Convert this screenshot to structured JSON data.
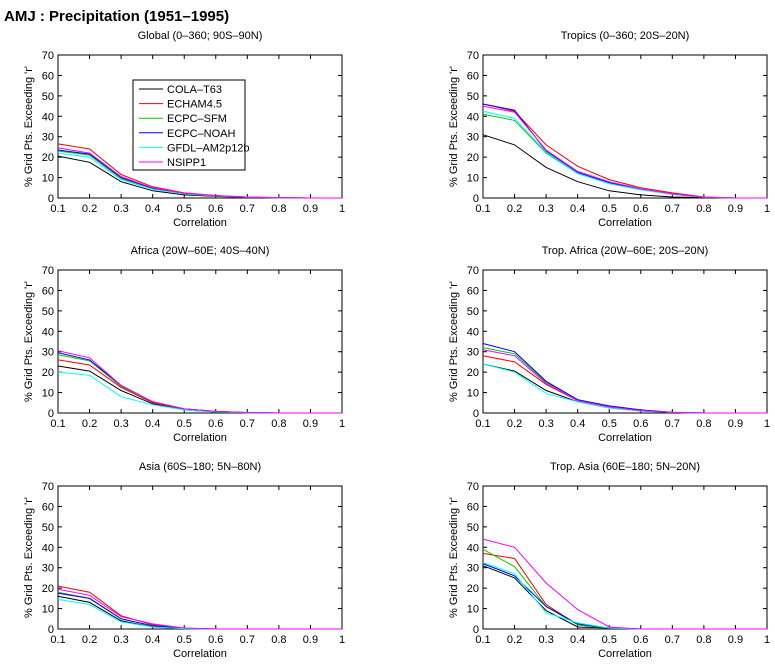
{
  "title": "AMJ : Precipitation (1951–1995)",
  "chart_data": [
    {
      "type": "line",
      "title": "Global (0–360; 90S–90N)",
      "xlabel": "Correlation",
      "ylabel": "% Grid Pts. Exceeding 'r'",
      "xlim": [
        0.1,
        1
      ],
      "ylim": [
        0,
        70
      ],
      "x": [
        0.1,
        0.2,
        0.3,
        0.4,
        0.5,
        0.6,
        0.7,
        0.8,
        0.9,
        1.0
      ],
      "series": [
        {
          "name": "COLA–T63",
          "values": [
            20.5,
            17.5,
            8,
            3.5,
            1.5,
            0.8,
            0.3,
            0.1,
            0,
            0
          ]
        },
        {
          "name": "ECHAM4.5",
          "values": [
            26.5,
            24,
            11.5,
            5.5,
            2.5,
            1.2,
            0.5,
            0.2,
            0,
            0
          ]
        },
        {
          "name": "ECPC–SFM",
          "values": [
            23,
            21,
            9.5,
            4.5,
            2,
            1,
            0.4,
            0.1,
            0,
            0
          ]
        },
        {
          "name": "ECPC–NOAH",
          "values": [
            23.5,
            21.5,
            10,
            4.8,
            2.2,
            1.1,
            0.4,
            0.1,
            0,
            0
          ]
        },
        {
          "name": "GFDL–AM2p12b",
          "values": [
            22,
            20,
            9,
            4.2,
            2,
            1,
            0.4,
            0.1,
            0,
            0
          ]
        },
        {
          "name": "NSIPP1",
          "values": [
            24.5,
            22,
            10.5,
            5,
            2.3,
            1.1,
            0.4,
            0.1,
            0,
            0
          ]
        }
      ],
      "xticks": [
        "0.1",
        "0.2",
        "0.3",
        "0.4",
        "0.5",
        "0.6",
        "0.7",
        "0.8",
        "0.9",
        "1"
      ],
      "yticks": [
        "0",
        "10",
        "20",
        "30",
        "40",
        "50",
        "60",
        "70"
      ],
      "legend": "upper-center"
    },
    {
      "type": "line",
      "title": "Tropics (0–360; 20S–20N)",
      "xlabel": "Correlation",
      "ylabel": "% Grid Pts. Exceeding 'r'",
      "xlim": [
        0.1,
        1
      ],
      "ylim": [
        0,
        70
      ],
      "x": [
        0.1,
        0.2,
        0.3,
        0.4,
        0.5,
        0.6,
        0.7,
        0.8,
        0.9,
        1.0
      ],
      "series": [
        {
          "name": "COLA–T63",
          "values": [
            31,
            26,
            15,
            8,
            3.5,
            1.5,
            0.5,
            0.2,
            0,
            0
          ]
        },
        {
          "name": "ECHAM4.5",
          "values": [
            46,
            42.5,
            26,
            15.5,
            9,
            5,
            2.5,
            0.5,
            0,
            0
          ]
        },
        {
          "name": "ECPC–SFM",
          "values": [
            41,
            38,
            22,
            12,
            7,
            4,
            1.8,
            0.4,
            0,
            0
          ]
        },
        {
          "name": "ECPC–NOAH",
          "values": [
            46,
            43,
            23,
            12.5,
            7.5,
            4.2,
            2,
            0.4,
            0,
            0
          ]
        },
        {
          "name": "GFDL–AM2p12b",
          "values": [
            42.5,
            39,
            22.5,
            12,
            7,
            4,
            1.8,
            0.4,
            0,
            0
          ]
        },
        {
          "name": "NSIPP1",
          "values": [
            45,
            42,
            23.5,
            13,
            8,
            4.5,
            2,
            0.4,
            0,
            0
          ]
        }
      ],
      "xticks": [
        "0.1",
        "0.2",
        "0.3",
        "0.4",
        "0.5",
        "0.6",
        "0.7",
        "0.8",
        "0.9",
        "1"
      ],
      "yticks": [
        "0",
        "10",
        "20",
        "30",
        "40",
        "50",
        "60",
        "70"
      ]
    },
    {
      "type": "line",
      "title": "Africa (20W–60E; 40S–40N)",
      "xlabel": "Correlation",
      "ylabel": "% Grid Pts. Exceeding 'r'",
      "xlim": [
        0.1,
        1
      ],
      "ylim": [
        0,
        70
      ],
      "x": [
        0.1,
        0.2,
        0.3,
        0.4,
        0.5,
        0.6,
        0.7,
        0.8,
        0.9,
        1.0
      ],
      "series": [
        {
          "name": "COLA–T63",
          "values": [
            23,
            20.5,
            11,
            4.5,
            1.5,
            0.5,
            0.1,
            0,
            0,
            0
          ]
        },
        {
          "name": "ECHAM4.5",
          "values": [
            26,
            23.5,
            12.5,
            5,
            2,
            0.8,
            0.2,
            0,
            0,
            0
          ]
        },
        {
          "name": "ECPC–SFM",
          "values": [
            28.5,
            25.5,
            13,
            5.5,
            2,
            0.8,
            0.2,
            0,
            0,
            0
          ]
        },
        {
          "name": "ECPC–NOAH",
          "values": [
            29.5,
            26,
            13.5,
            5.5,
            2,
            0.8,
            0.2,
            0,
            0,
            0
          ]
        },
        {
          "name": "GFDL–AM2p12b",
          "values": [
            20,
            18.5,
            8,
            4,
            1.5,
            0.5,
            0.1,
            0,
            0,
            0
          ]
        },
        {
          "name": "NSIPP1",
          "values": [
            30.5,
            27,
            13.5,
            5.5,
            2,
            0.8,
            0.2,
            0,
            0,
            0
          ]
        }
      ],
      "xticks": [
        "0.1",
        "0.2",
        "0.3",
        "0.4",
        "0.5",
        "0.6",
        "0.7",
        "0.8",
        "0.9",
        "1"
      ],
      "yticks": [
        "0",
        "10",
        "20",
        "30",
        "40",
        "50",
        "60",
        "70"
      ]
    },
    {
      "type": "line",
      "title": "Trop. Africa (20W–60E; 20S–20N)",
      "xlabel": "Correlation",
      "ylabel": "% Grid Pts. Exceeding 'r'",
      "xlim": [
        0.1,
        1
      ],
      "ylim": [
        0,
        70
      ],
      "x": [
        0.1,
        0.2,
        0.3,
        0.4,
        0.5,
        0.6,
        0.7,
        0.8,
        0.9,
        1.0
      ],
      "series": [
        {
          "name": "COLA–T63",
          "values": [
            24,
            20.5,
            11,
            5.5,
            2.5,
            1,
            0.3,
            0,
            0,
            0
          ]
        },
        {
          "name": "ECHAM4.5",
          "values": [
            28,
            25,
            14,
            6,
            3,
            1.2,
            0.3,
            0,
            0,
            0
          ]
        },
        {
          "name": "ECPC–SFM",
          "values": [
            32,
            29,
            15,
            6.5,
            3,
            1.2,
            0.3,
            0,
            0,
            0
          ]
        },
        {
          "name": "ECPC–NOAH",
          "values": [
            34,
            30,
            15.5,
            6.5,
            3.5,
            1.5,
            0.4,
            0,
            0,
            0
          ]
        },
        {
          "name": "GFDL–AM2p12b",
          "values": [
            24,
            20,
            9.5,
            5.5,
            2.5,
            1,
            0.3,
            0,
            0,
            0
          ]
        },
        {
          "name": "NSIPP1",
          "values": [
            31,
            28,
            14.5,
            6,
            3,
            1.2,
            0.3,
            0,
            0,
            0
          ]
        }
      ],
      "xticks": [
        "0.1",
        "0.2",
        "0.3",
        "0.4",
        "0.5",
        "0.6",
        "0.7",
        "0.8",
        "0.9",
        "1"
      ],
      "yticks": [
        "0",
        "10",
        "20",
        "30",
        "40",
        "50",
        "60",
        "70"
      ]
    },
    {
      "type": "line",
      "title": "Asia (60S–180; 5N–80N)",
      "xlabel": "Correlation",
      "ylabel": "% Grid Pts. Exceeding 'r'",
      "xlim": [
        0.1,
        1
      ],
      "ylim": [
        0,
        70
      ],
      "x": [
        0.1,
        0.2,
        0.3,
        0.4,
        0.5,
        0.6,
        0.7,
        0.8,
        0.9,
        1.0
      ],
      "series": [
        {
          "name": "COLA–T63",
          "values": [
            16,
            13,
            4,
            1,
            0.2,
            0,
            0,
            0,
            0,
            0
          ]
        },
        {
          "name": "ECHAM4.5",
          "values": [
            21,
            18,
            6.5,
            2,
            0.4,
            0,
            0,
            0,
            0,
            0
          ]
        },
        {
          "name": "ECPC–SFM",
          "values": [
            18,
            15,
            5,
            1.5,
            0.3,
            0,
            0,
            0,
            0,
            0
          ]
        },
        {
          "name": "ECPC–NOAH",
          "values": [
            17.5,
            15,
            5,
            1.5,
            0.3,
            0,
            0,
            0,
            0,
            0
          ]
        },
        {
          "name": "GFDL–AM2p12b",
          "values": [
            14.5,
            12,
            3.5,
            1,
            0.2,
            0,
            0,
            0,
            0,
            0
          ]
        },
        {
          "name": "NSIPP1",
          "values": [
            19.5,
            16.5,
            6,
            2.5,
            0.5,
            0,
            0,
            0,
            0,
            0
          ]
        }
      ],
      "xticks": [
        "0.1",
        "0.2",
        "0.3",
        "0.4",
        "0.5",
        "0.6",
        "0.7",
        "0.8",
        "0.9",
        "1"
      ],
      "yticks": [
        "0",
        "10",
        "20",
        "30",
        "40",
        "50",
        "60",
        "70"
      ]
    },
    {
      "type": "line",
      "title": "Trop. Asia (60E–180; 5N–20N)",
      "xlabel": "Correlation",
      "ylabel": "% Grid Pts. Exceeding 'r'",
      "xlim": [
        0.1,
        1
      ],
      "ylim": [
        0,
        70
      ],
      "x": [
        0.1,
        0.2,
        0.3,
        0.4,
        0.5,
        0.6,
        0.7,
        0.8,
        0.9,
        1.0
      ],
      "series": [
        {
          "name": "COLA–T63",
          "values": [
            31,
            25,
            9,
            1,
            0.5,
            0,
            0,
            0,
            0,
            0
          ]
        },
        {
          "name": "ECHAM4.5",
          "values": [
            37,
            34.5,
            12,
            2,
            0.5,
            0,
            0,
            0,
            0,
            0
          ]
        },
        {
          "name": "ECPC–SFM",
          "values": [
            39,
            30.5,
            11,
            2,
            0.5,
            0,
            0,
            0,
            0,
            0
          ]
        },
        {
          "name": "ECPC–NOAH",
          "values": [
            32,
            26,
            11,
            2.5,
            0.5,
            0,
            0,
            0,
            0,
            0
          ]
        },
        {
          "name": "GFDL–AM2p12b",
          "values": [
            32.5,
            27,
            8,
            3,
            0.5,
            0,
            0,
            0,
            0,
            0
          ]
        },
        {
          "name": "NSIPP1",
          "values": [
            44,
            40,
            22.5,
            9.5,
            1,
            0,
            0,
            0,
            0,
            0
          ]
        }
      ],
      "xticks": [
        "0.1",
        "0.2",
        "0.3",
        "0.4",
        "0.5",
        "0.6",
        "0.7",
        "0.8",
        "0.9",
        "1"
      ],
      "yticks": [
        "0",
        "10",
        "20",
        "30",
        "40",
        "50",
        "60",
        "70"
      ]
    }
  ],
  "colors": {
    "COLA–T63": "#000000",
    "ECHAM4.5": "#ff0000",
    "ECPC–SFM": "#00cc00",
    "ECPC–NOAH": "#0000ff",
    "GFDL–AM2p12b": "#00ffff",
    "NSIPP1": "#ff00ff"
  }
}
